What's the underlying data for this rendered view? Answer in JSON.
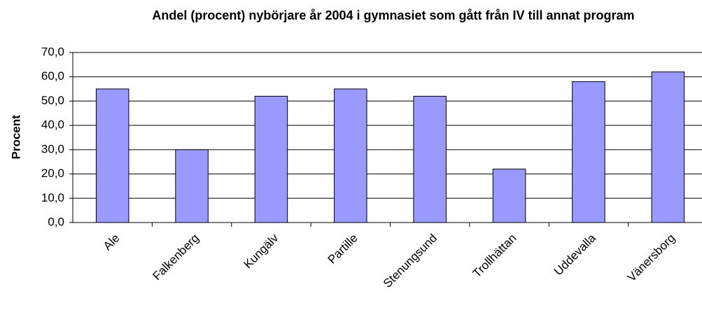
{
  "chart_data": {
    "type": "bar",
    "title": "Andel (procent) nybörjare år 2004 i gymnasiet som gått från IV till annat program",
    "y_label": "Procent",
    "categories": [
      "Ale",
      "Falkenberg",
      "Kungälv",
      "Partille",
      "Stenungsund",
      "Trollhättan",
      "Uddevalla",
      "Vänersborg"
    ],
    "values": [
      55,
      30,
      52,
      55,
      52,
      22,
      58,
      62
    ],
    "color": "#9999ff",
    "ylim": [
      0,
      70
    ],
    "yticks": [
      {
        "value": 0,
        "label": "0,0"
      },
      {
        "value": 10,
        "label": "10,0"
      },
      {
        "value": 20,
        "label": "20,0"
      },
      {
        "value": 30,
        "label": "30,0"
      },
      {
        "value": 40,
        "label": "40,0"
      },
      {
        "value": 50,
        "label": "50,0"
      },
      {
        "value": 60,
        "label": "60,0"
      },
      {
        "value": 70,
        "label": "70,0"
      }
    ],
    "grid": true
  }
}
